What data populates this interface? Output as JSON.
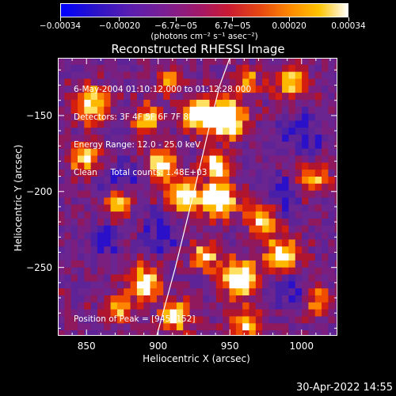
{
  "colorbar": {
    "tick_labels": [
      "−0.00034",
      "−0.00020",
      "−6.7e−05",
      "6.7e−05",
      "0.00020",
      "0.00034"
    ],
    "tick_values": [
      -0.00034,
      -0.0002,
      -6.7e-05,
      6.7e-05,
      0.0002,
      0.00034
    ],
    "range": [
      -0.00034,
      0.00034
    ],
    "units": "(photons cm⁻² s⁻¹ asec⁻²)"
  },
  "chart_data": {
    "type": "heatmap",
    "title": "Reconstructed RHESSI Image",
    "xlabel": "Heliocentric X (arcsec)",
    "ylabel": "Heliocentric Y (arcsec)",
    "xlim": [
      830,
      1025
    ],
    "ylim": [
      -295,
      -112
    ],
    "x_ticks": [
      850,
      900,
      950,
      1000
    ],
    "y_ticks": [
      -150,
      -200,
      -250
    ],
    "x_tick_labels": [
      "850",
      "900",
      "950",
      "1000"
    ],
    "y_tick_labels": [
      "−150",
      "−200",
      "−250"
    ],
    "colormap": "rainbow-like (blue → purple → red → orange → yellow → white)",
    "peak": [
      945,
      -152
    ],
    "limb_curve": {
      "x": [
        899,
        912,
        925,
        935,
        943,
        950
      ],
      "y": [
        -295,
        -250,
        -200,
        -160,
        -130,
        -112
      ]
    }
  },
  "annotations": [
    "6-May-2004 01:10:12.000 to 01:12:28.000",
    "Detectors: 3F 4F 5F 6F 7F 8F, Att 0",
    "Energy Range: 12.0 - 25.0 keV",
    "Clean     Total counts: 1.48E+03"
  ],
  "peak_label": "Position of Peak = [945,-152]",
  "timestamp": "30-Apr-2022 14:55"
}
